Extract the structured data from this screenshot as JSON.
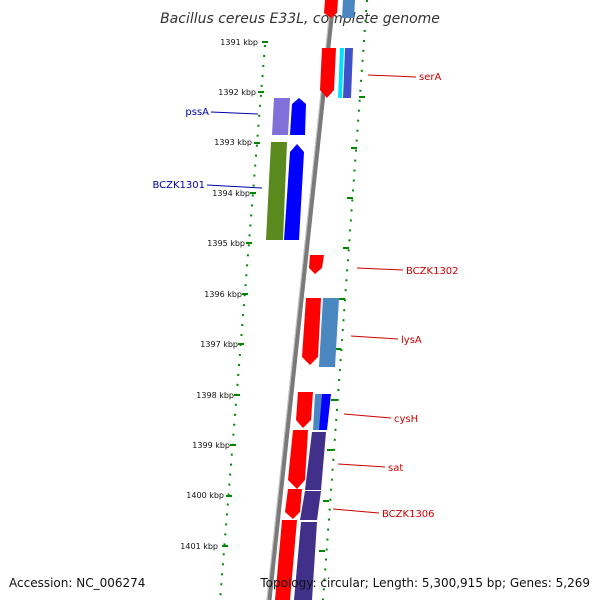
{
  "title": "Bacillus cereus E33L, complete genome",
  "scale_ticks": [
    "1391 kbp",
    "1392 kbp",
    "1393 kbp",
    "1394 kbp",
    "1395 kbp",
    "1396 kbp",
    "1397 kbp",
    "1398 kbp",
    "1399 kbp",
    "1400 kbp",
    "1401 kbp"
  ],
  "gene_labels": [
    {
      "name": "serA",
      "strand": "plus",
      "color": "#cc0000"
    },
    {
      "name": "pssA",
      "strand": "minus",
      "color": "#0000aa"
    },
    {
      "name": "BCZK1301",
      "strand": "minus",
      "color": "#0000aa"
    },
    {
      "name": "BCZK1302",
      "strand": "plus",
      "color": "#cc0000"
    },
    {
      "name": "lysA",
      "strand": "plus",
      "color": "#cc0000"
    },
    {
      "name": "cysH",
      "strand": "plus",
      "color": "#cc0000"
    },
    {
      "name": "sat",
      "strand": "plus",
      "color": "#cc0000"
    },
    {
      "name": "BCZK1306",
      "strand": "plus",
      "color": "#cc0000"
    }
  ],
  "footer": {
    "accession": "Accession: NC_006274",
    "topology": "Topology: circular; Length: 5,300,915 bp; Genes: 5,269"
  },
  "colors": {
    "cog_red": "#ff0000",
    "cog_blue": "#0000ff",
    "cog_purple": "#8070d8",
    "cog_olive": "#5a8a1e",
    "cog_steel": "#4a86c0",
    "cog_cyan": "#00e0ff",
    "cog_navy": "#40308a",
    "backbone": "#777777",
    "tick_green": "#008800"
  }
}
